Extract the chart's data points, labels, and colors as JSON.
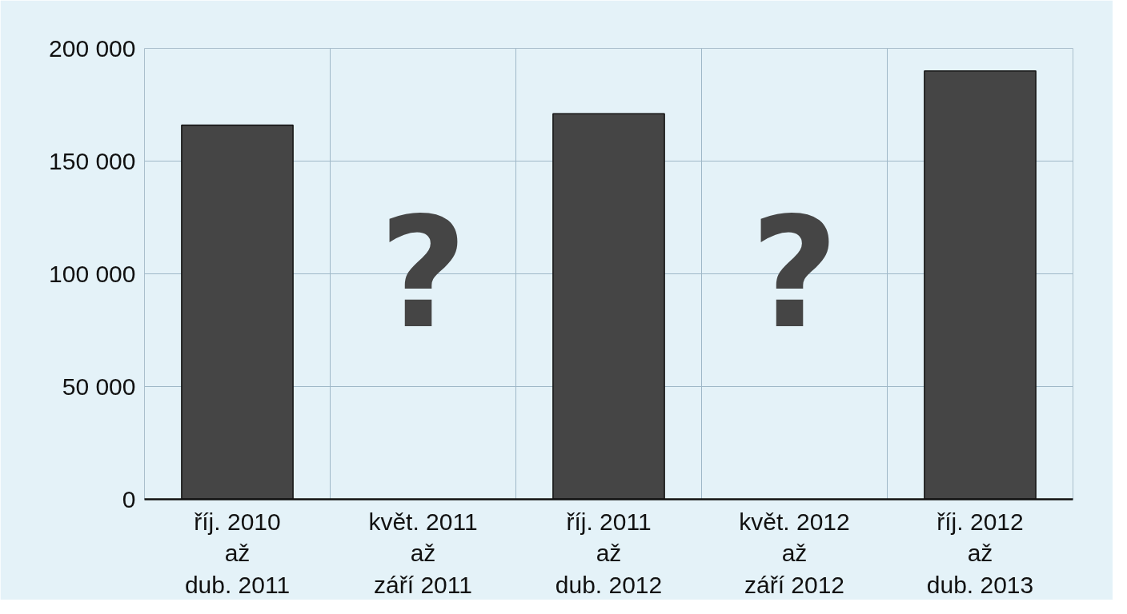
{
  "chart_data": {
    "type": "bar",
    "categories": [
      "říj. 2010\naž\ndub. 2011",
      "květ. 2011\naž\nzáří 2011",
      "říj. 2011\naž\ndub. 2012",
      "květ. 2012\naž\nzáří 2012",
      "říj. 2012\naž\ndub. 2013"
    ],
    "values": [
      166000,
      null,
      171000,
      null,
      190000
    ],
    "color": "#454545",
    "ylim": [
      0,
      200000
    ],
    "yticks": [
      {
        "value": 0,
        "label": "0"
      },
      {
        "value": 50000,
        "label": "50 000"
      },
      {
        "value": 100000,
        "label": "100 000"
      },
      {
        "value": 150000,
        "label": "150 000"
      },
      {
        "value": 200000,
        "label": "200 000"
      }
    ],
    "grid": true,
    "annotations": [
      "?",
      "?"
    ]
  }
}
